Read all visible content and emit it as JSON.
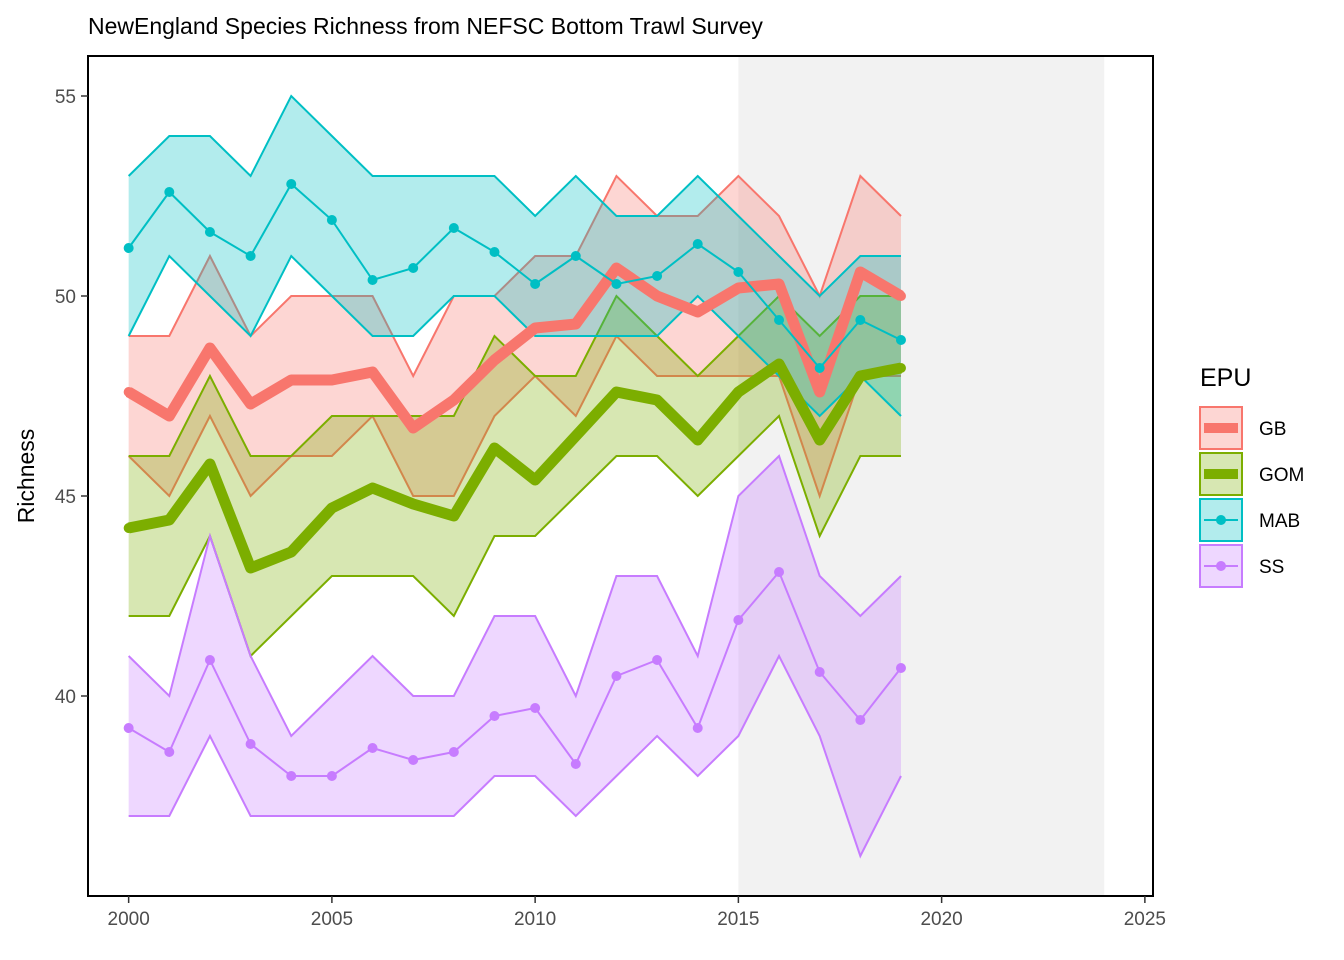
{
  "chart_data": {
    "type": "line",
    "title": "NewEngland Species Richness from NEFSC Bottom Trawl Survey",
    "xlabel": "",
    "ylabel": "Richness",
    "xlim": [
      1999,
      2025.2
    ],
    "ylim": [
      35,
      56
    ],
    "x_ticks": [
      2000,
      2005,
      2010,
      2015,
      2020,
      2025
    ],
    "y_ticks": [
      40,
      45,
      50,
      55
    ],
    "shaded_region": {
      "x_start": 2015,
      "x_end": 2024,
      "color": "#f2f2f2"
    },
    "legend": {
      "title": "EPU",
      "position": "right"
    },
    "x": [
      2000,
      2001,
      2002,
      2003,
      2004,
      2005,
      2006,
      2007,
      2008,
      2009,
      2010,
      2011,
      2012,
      2013,
      2014,
      2015,
      2016,
      2017,
      2018,
      2019
    ],
    "series": [
      {
        "name": "GB",
        "color": "#F8766D",
        "style": "thick-line",
        "values": [
          47.6,
          47.0,
          48.7,
          47.3,
          47.9,
          47.9,
          48.1,
          46.7,
          47.4,
          48.4,
          49.2,
          49.3,
          50.7,
          50.0,
          49.6,
          50.2,
          50.3,
          47.6,
          50.6,
          50.0
        ],
        "lower": [
          46,
          45,
          47,
          45,
          46,
          46,
          47,
          45,
          45,
          47,
          48,
          47,
          49,
          48,
          48,
          48,
          48,
          45,
          48,
          48
        ],
        "upper": [
          49,
          49,
          51,
          49,
          50,
          50,
          50,
          48,
          50,
          50,
          51,
          51,
          53,
          52,
          52,
          53,
          52,
          50,
          53,
          52
        ]
      },
      {
        "name": "GOM",
        "color": "#7CAE00",
        "style": "thick-line",
        "values": [
          44.2,
          44.4,
          45.8,
          43.2,
          43.6,
          44.7,
          45.2,
          44.8,
          44.5,
          46.2,
          45.4,
          46.5,
          47.6,
          47.4,
          46.4,
          47.6,
          48.3,
          46.4,
          48.0,
          48.2
        ],
        "lower": [
          42,
          42,
          44,
          41,
          42,
          43,
          43,
          43,
          42,
          44,
          44,
          45,
          46,
          46,
          45,
          46,
          47,
          44,
          46,
          46
        ],
        "upper": [
          46,
          46,
          48,
          46,
          46,
          47,
          47,
          47,
          47,
          49,
          48,
          48,
          50,
          49,
          48,
          49,
          50,
          49,
          50,
          50
        ]
      },
      {
        "name": "MAB",
        "color": "#00BFC4",
        "style": "line-points",
        "values": [
          51.2,
          52.6,
          51.6,
          51.0,
          52.8,
          51.9,
          50.4,
          50.7,
          51.7,
          51.1,
          50.3,
          51.0,
          50.3,
          50.5,
          51.3,
          50.6,
          49.4,
          48.2,
          49.4,
          48.9
        ],
        "lower": [
          49,
          51,
          50,
          49,
          51,
          50,
          49,
          49,
          50,
          50,
          49,
          49,
          49,
          49,
          50,
          49,
          48,
          47,
          48,
          47
        ],
        "upper": [
          53,
          54,
          54,
          53,
          55,
          54,
          53,
          53,
          53,
          53,
          52,
          53,
          52,
          52,
          53,
          52,
          51,
          50,
          51,
          51
        ]
      },
      {
        "name": "SS",
        "color": "#C77CFF",
        "style": "line-points",
        "values": [
          39.2,
          38.6,
          40.9,
          38.8,
          38.0,
          38.0,
          38.7,
          38.4,
          38.6,
          39.5,
          39.7,
          38.3,
          40.5,
          40.9,
          39.2,
          41.9,
          43.1,
          40.6,
          39.4,
          40.7
        ],
        "lower": [
          37,
          37,
          39,
          37,
          37,
          37,
          37,
          37,
          37,
          38,
          38,
          37,
          38,
          39,
          38,
          39,
          41,
          39,
          36,
          38
        ],
        "upper": [
          41,
          40,
          44,
          41,
          39,
          40,
          41,
          40,
          40,
          42,
          42,
          40,
          43,
          43,
          41,
          45,
          46,
          43,
          42,
          43
        ]
      }
    ]
  }
}
